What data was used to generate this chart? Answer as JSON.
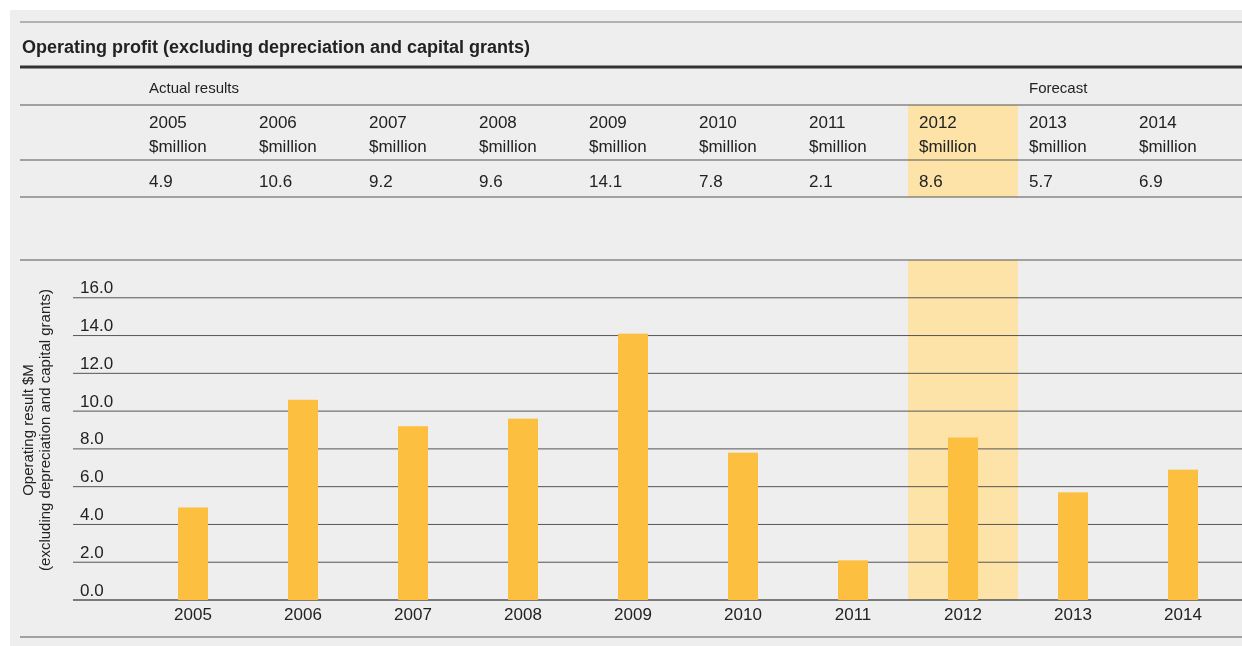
{
  "chart_data": {
    "type": "bar",
    "title": "Operating profit (excluding depreciation and capital grants)",
    "ylabel": "Operating result $M\n(excluding depreciation and capital grants)",
    "categories": [
      "2005",
      "2006",
      "2007",
      "2008",
      "2009",
      "2010",
      "2011",
      "2012",
      "2013",
      "2014"
    ],
    "values": [
      4.9,
      10.6,
      9.2,
      9.6,
      14.1,
      7.8,
      2.1,
      8.6,
      5.7,
      6.9
    ],
    "color": "#fdbf3f",
    "ylim": [
      0,
      18
    ],
    "yticks": [
      {
        "value": 0,
        "label": "0.0"
      },
      {
        "value": 2,
        "label": "2.0"
      },
      {
        "value": 4,
        "label": "4.0"
      },
      {
        "value": 6,
        "label": "6.0"
      },
      {
        "value": 8,
        "label": "8.0"
      },
      {
        "value": 10,
        "label": "10.0"
      },
      {
        "value": 12,
        "label": "12.0"
      },
      {
        "value": 14,
        "label": "14.0"
      },
      {
        "value": 16,
        "label": "16.0"
      }
    ],
    "grid": "y",
    "data_labels": true,
    "bands": [
      {
        "axis": "x",
        "from": "2012",
        "to": "2012",
        "color": "#fde3a7"
      }
    ],
    "annotations": [
      "Actual results",
      "Forecast",
      "$million"
    ]
  }
}
